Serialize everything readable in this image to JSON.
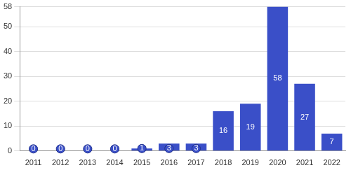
{
  "chart_data": {
    "type": "bar",
    "categories": [
      "2011",
      "2012",
      "2013",
      "2014",
      "2015",
      "2016",
      "2017",
      "2018",
      "2019",
      "2020",
      "2021",
      "2022"
    ],
    "values": [
      0,
      0,
      0,
      0,
      1,
      3,
      3,
      16,
      19,
      58,
      27,
      7
    ],
    "color": "#3a4fc8",
    "ylim": [
      0,
      58
    ],
    "yticks": [
      0,
      10,
      20,
      30,
      40,
      50,
      58
    ],
    "grid": true,
    "data_labels": true
  }
}
